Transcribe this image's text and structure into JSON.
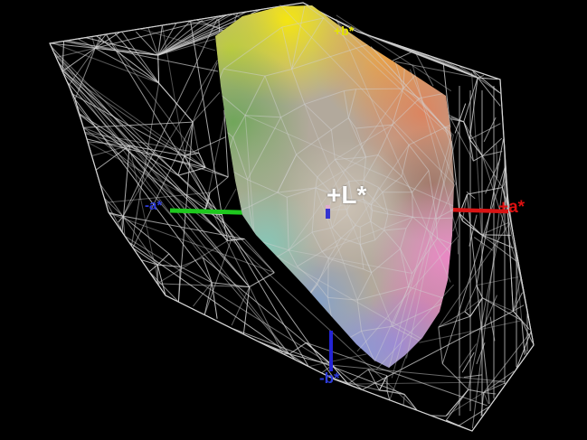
{
  "view": {
    "background_color": "#000000",
    "wireframe_color": "#d2d2d2",
    "outline_color": "#e6e6e6"
  },
  "labels": {
    "l_plus": {
      "text": "+L*",
      "color": "#ffffff"
    },
    "a_plus": {
      "text": "+a*",
      "color": "#dd1111"
    },
    "a_minus": {
      "text": "-a*",
      "color": "#2d3bd8"
    },
    "b_plus": {
      "text": "+b*",
      "color": "#e4e400"
    },
    "b_minus": {
      "text": "-b*",
      "color": "#2d3bd8"
    }
  },
  "axes": {
    "a_plus_color": "#d81414",
    "a_minus_color": "#1ec71e",
    "b_minus_color": "#2424d4"
  },
  "gamut_colors": {
    "base": "#b2a99c",
    "yellow": "#f4e512",
    "yellow_green": "#bccd3c",
    "green": "#69a653",
    "sage": "#93b183",
    "orange": "#f0a43c",
    "red_orange": "#e27e56",
    "maroon": "#9c6a5c",
    "pink": "#ec86c6",
    "magenta": "#d877b5",
    "purple": "#9f86d8",
    "blue_lavender": "#8495de",
    "steel_blue": "#7fa0ce",
    "teal": "#85c8b8",
    "light_center": "#cdc3b6"
  }
}
